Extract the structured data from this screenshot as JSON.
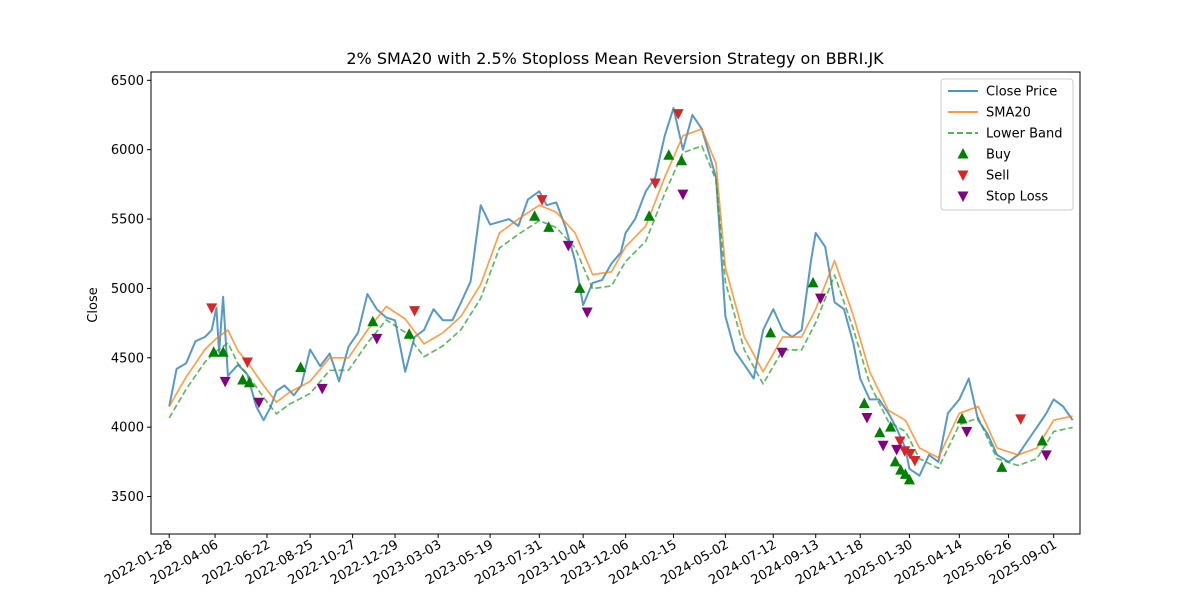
{
  "chart_data": {
    "type": "line",
    "title": "2% SMA20 with 2.5% Stoploss Mean Reversion Strategy on BBRI.JK",
    "xlabel": "",
    "ylabel": "Close",
    "x_ticks": [
      "2022-01-28",
      "2022-04-06",
      "2022-06-22",
      "2022-08-25",
      "2022-10-27",
      "2022-12-29",
      "2023-03-03",
      "2023-05-19",
      "2023-07-31",
      "2023-10-04",
      "2023-12-06",
      "2024-02-15",
      "2024-05-02",
      "2024-07-12",
      "2024-09-13",
      "2024-11-18",
      "2025-01-30",
      "2025-04-14",
      "2025-06-26",
      "2025-09-01"
    ],
    "y_ticks": [
      3500,
      4000,
      4500,
      5000,
      5500,
      6000,
      6500
    ],
    "ylim": [
      3230,
      6560
    ],
    "xlim": [
      "2022-01-01",
      "2025-10-10"
    ],
    "legend_position": "upper right",
    "legend": [
      "Close Price",
      "SMA20",
      "Lower Band",
      "Buy",
      "Sell",
      "Stop Loss"
    ],
    "colors": {
      "close": "#1f77b4",
      "sma": "#ff7f0e",
      "lower": "#2ca02c",
      "buy": "#008000",
      "sell": "#d62728",
      "stop": "#800080"
    },
    "series": [
      {
        "name": "Close Price",
        "x": [
          "2022-01-28",
          "2022-02-08",
          "2022-02-22",
          "2022-03-08",
          "2022-03-22",
          "2022-04-01",
          "2022-04-08",
          "2022-04-12",
          "2022-04-18",
          "2022-04-25",
          "2022-05-10",
          "2022-05-24",
          "2022-06-06",
          "2022-06-17",
          "2022-06-27",
          "2022-07-06",
          "2022-07-18",
          "2022-08-01",
          "2022-08-12",
          "2022-08-25",
          "2022-09-09",
          "2022-09-23",
          "2022-10-07",
          "2022-10-21",
          "2022-11-04",
          "2022-11-18",
          "2022-12-02",
          "2022-12-16",
          "2022-12-29",
          "2023-01-13",
          "2023-01-27",
          "2023-02-10",
          "2023-02-24",
          "2023-03-10",
          "2023-03-24",
          "2023-04-06",
          "2023-04-20",
          "2023-05-05",
          "2023-05-19",
          "2023-06-02",
          "2023-06-16",
          "2023-06-30",
          "2023-07-14",
          "2023-07-31",
          "2023-08-11",
          "2023-08-25",
          "2023-09-08",
          "2023-09-22",
          "2023-10-04",
          "2023-10-18",
          "2023-11-01",
          "2023-11-15",
          "2023-11-29",
          "2023-12-06",
          "2023-12-20",
          "2024-01-05",
          "2024-01-19",
          "2024-02-02",
          "2024-02-15",
          "2024-02-29",
          "2024-03-14",
          "2024-03-28",
          "2024-04-18",
          "2024-05-02",
          "2024-05-16",
          "2024-05-30",
          "2024-06-13",
          "2024-06-27",
          "2024-07-12",
          "2024-07-26",
          "2024-08-09",
          "2024-08-23",
          "2024-09-06",
          "2024-09-13",
          "2024-09-27",
          "2024-10-11",
          "2024-10-25",
          "2024-11-08",
          "2024-11-18",
          "2024-12-02",
          "2024-12-16",
          "2024-12-30",
          "2025-01-10",
          "2025-01-24",
          "2025-01-30",
          "2025-02-14",
          "2025-02-28",
          "2025-03-14",
          "2025-03-28",
          "2025-04-14",
          "2025-04-28",
          "2025-05-12",
          "2025-05-26",
          "2025-06-09",
          "2025-06-26",
          "2025-07-10",
          "2025-07-24",
          "2025-08-07",
          "2025-08-21",
          "2025-09-01",
          "2025-09-15",
          "2025-09-29"
        ],
        "y": [
          4150,
          4420,
          4460,
          4620,
          4650,
          4700,
          4860,
          4540,
          4940,
          4370,
          4450,
          4380,
          4150,
          4050,
          4140,
          4260,
          4300,
          4230,
          4300,
          4560,
          4440,
          4530,
          4330,
          4580,
          4680,
          4960,
          4850,
          4790,
          4770,
          4400,
          4650,
          4700,
          4850,
          4770,
          4770,
          4900,
          5050,
          5600,
          5460,
          5480,
          5500,
          5450,
          5640,
          5700,
          5600,
          5620,
          5440,
          5200,
          4880,
          5040,
          5060,
          5180,
          5260,
          5400,
          5500,
          5700,
          5800,
          6100,
          6300,
          6000,
          6250,
          6150,
          5800,
          4800,
          4550,
          4450,
          4350,
          4700,
          4850,
          4700,
          4650,
          4700,
          5200,
          5400,
          5300,
          4900,
          4850,
          4600,
          4350,
          4200,
          4200,
          4100,
          4000,
          3850,
          3700,
          3650,
          3800,
          3750,
          4100,
          4200,
          4350,
          4050,
          3950,
          3800,
          3750,
          3800,
          3900,
          4000,
          4100,
          4200,
          4150,
          4050
        ]
      },
      {
        "name": "SMA20",
        "x": [
          "2022-01-28",
          "2022-02-22",
          "2022-03-22",
          "2022-04-08",
          "2022-04-25",
          "2022-05-10",
          "2022-05-24",
          "2022-06-17",
          "2022-07-06",
          "2022-07-25",
          "2022-08-25",
          "2022-09-23",
          "2022-10-21",
          "2022-11-18",
          "2022-12-16",
          "2023-01-13",
          "2023-02-10",
          "2023-03-10",
          "2023-04-06",
          "2023-05-05",
          "2023-06-02",
          "2023-06-30",
          "2023-07-31",
          "2023-08-25",
          "2023-09-22",
          "2023-10-18",
          "2023-11-15",
          "2023-12-06",
          "2024-01-05",
          "2024-02-02",
          "2024-02-29",
          "2024-03-28",
          "2024-04-18",
          "2024-05-02",
          "2024-05-30",
          "2024-06-27",
          "2024-07-26",
          "2024-08-23",
          "2024-09-13",
          "2024-10-11",
          "2024-11-08",
          "2024-12-02",
          "2024-12-30",
          "2025-01-24",
          "2025-02-14",
          "2025-03-14",
          "2025-04-14",
          "2025-05-12",
          "2025-06-09",
          "2025-07-10",
          "2025-08-07",
          "2025-09-01",
          "2025-09-29"
        ],
        "y": [
          4150,
          4360,
          4560,
          4640,
          4700,
          4550,
          4470,
          4300,
          4180,
          4250,
          4330,
          4500,
          4500,
          4700,
          4870,
          4780,
          4600,
          4680,
          4800,
          5030,
          5400,
          5500,
          5600,
          5550,
          5400,
          5100,
          5120,
          5300,
          5450,
          5800,
          6100,
          6150,
          5900,
          5150,
          4650,
          4400,
          4650,
          4650,
          4850,
          5200,
          4800,
          4400,
          4120,
          4050,
          3850,
          3780,
          4100,
          4150,
          3850,
          3800,
          3850,
          4050,
          4080
        ]
      },
      {
        "name": "Lower Band",
        "x": [
          "2022-01-28",
          "2022-02-22",
          "2022-03-22",
          "2022-04-08",
          "2022-04-25",
          "2022-05-10",
          "2022-05-24",
          "2022-06-17",
          "2022-07-06",
          "2022-07-25",
          "2022-08-25",
          "2022-09-23",
          "2022-10-21",
          "2022-11-18",
          "2022-12-16",
          "2023-01-13",
          "2023-02-10",
          "2023-03-10",
          "2023-04-06",
          "2023-05-05",
          "2023-06-02",
          "2023-06-30",
          "2023-07-31",
          "2023-08-25",
          "2023-09-22",
          "2023-10-18",
          "2023-11-15",
          "2023-12-06",
          "2024-01-05",
          "2024-02-02",
          "2024-02-29",
          "2024-03-28",
          "2024-04-18",
          "2024-05-02",
          "2024-05-30",
          "2024-06-27",
          "2024-07-26",
          "2024-08-23",
          "2024-09-13",
          "2024-10-11",
          "2024-11-08",
          "2024-12-02",
          "2024-12-30",
          "2025-01-24",
          "2025-02-14",
          "2025-03-14",
          "2025-04-14",
          "2025-05-12",
          "2025-06-09",
          "2025-07-10",
          "2025-08-07",
          "2025-09-01",
          "2025-09-29"
        ],
        "y": [
          4067,
          4273,
          4469,
          4547,
          4606,
          4459,
          4381,
          4214,
          4096,
          4165,
          4243,
          4410,
          4410,
          4606,
          4773,
          4684,
          4508,
          4586,
          4704,
          4929,
          5292,
          5390,
          5488,
          5439,
          5292,
          4998,
          5018,
          5194,
          5341,
          5684,
          5978,
          6027,
          5782,
          5047,
          4557,
          4312,
          4557,
          4557,
          4753,
          5096,
          4704,
          4312,
          4038,
          3969,
          3773,
          3704,
          4018,
          4067,
          3773,
          3724,
          3773,
          3969,
          3998
        ]
      }
    ],
    "signals": {
      "buy": {
        "x": [
          "2022-04-04",
          "2022-04-18",
          "2022-05-17",
          "2022-05-27",
          "2022-08-11",
          "2022-11-26",
          "2023-01-19",
          "2023-07-24",
          "2023-08-14",
          "2023-09-29",
          "2024-01-10",
          "2024-02-08",
          "2024-02-27",
          "2024-07-08",
          "2024-09-09",
          "2024-11-24",
          "2024-12-17",
          "2025-01-02",
          "2025-01-09",
          "2025-01-17",
          "2025-01-24",
          "2025-01-30",
          "2025-04-18",
          "2025-06-16",
          "2025-08-15"
        ],
        "y": [
          4540,
          4540,
          4340,
          4320,
          4430,
          4760,
          4670,
          5520,
          5440,
          5000,
          5520,
          5960,
          5920,
          4680,
          5040,
          4170,
          3960,
          4000,
          3750,
          3690,
          3660,
          3620,
          4060,
          3710,
          3900
        ]
      },
      "sell": {
        "x": [
          "2022-04-01",
          "2022-05-24",
          "2023-01-27",
          "2023-08-04",
          "2024-01-19",
          "2024-02-22",
          "2025-01-16",
          "2025-01-23",
          "2025-01-31",
          "2025-02-07",
          "2025-07-14"
        ],
        "y": [
          4860,
          4470,
          4840,
          5640,
          5760,
          6260,
          3900,
          3830,
          3810,
          3760,
          4060
        ]
      },
      "stop": {
        "x": [
          "2022-04-21",
          "2022-06-10",
          "2022-09-12",
          "2022-12-02",
          "2023-09-12",
          "2023-10-10",
          "2024-02-29",
          "2024-07-25",
          "2024-09-20",
          "2024-11-28",
          "2024-12-22",
          "2025-01-11",
          "2025-04-25",
          "2025-08-21"
        ],
        "y": [
          4330,
          4180,
          4280,
          4640,
          5310,
          4830,
          5680,
          4540,
          4930,
          4070,
          3870,
          3840,
          3970,
          3800
        ]
      }
    }
  }
}
